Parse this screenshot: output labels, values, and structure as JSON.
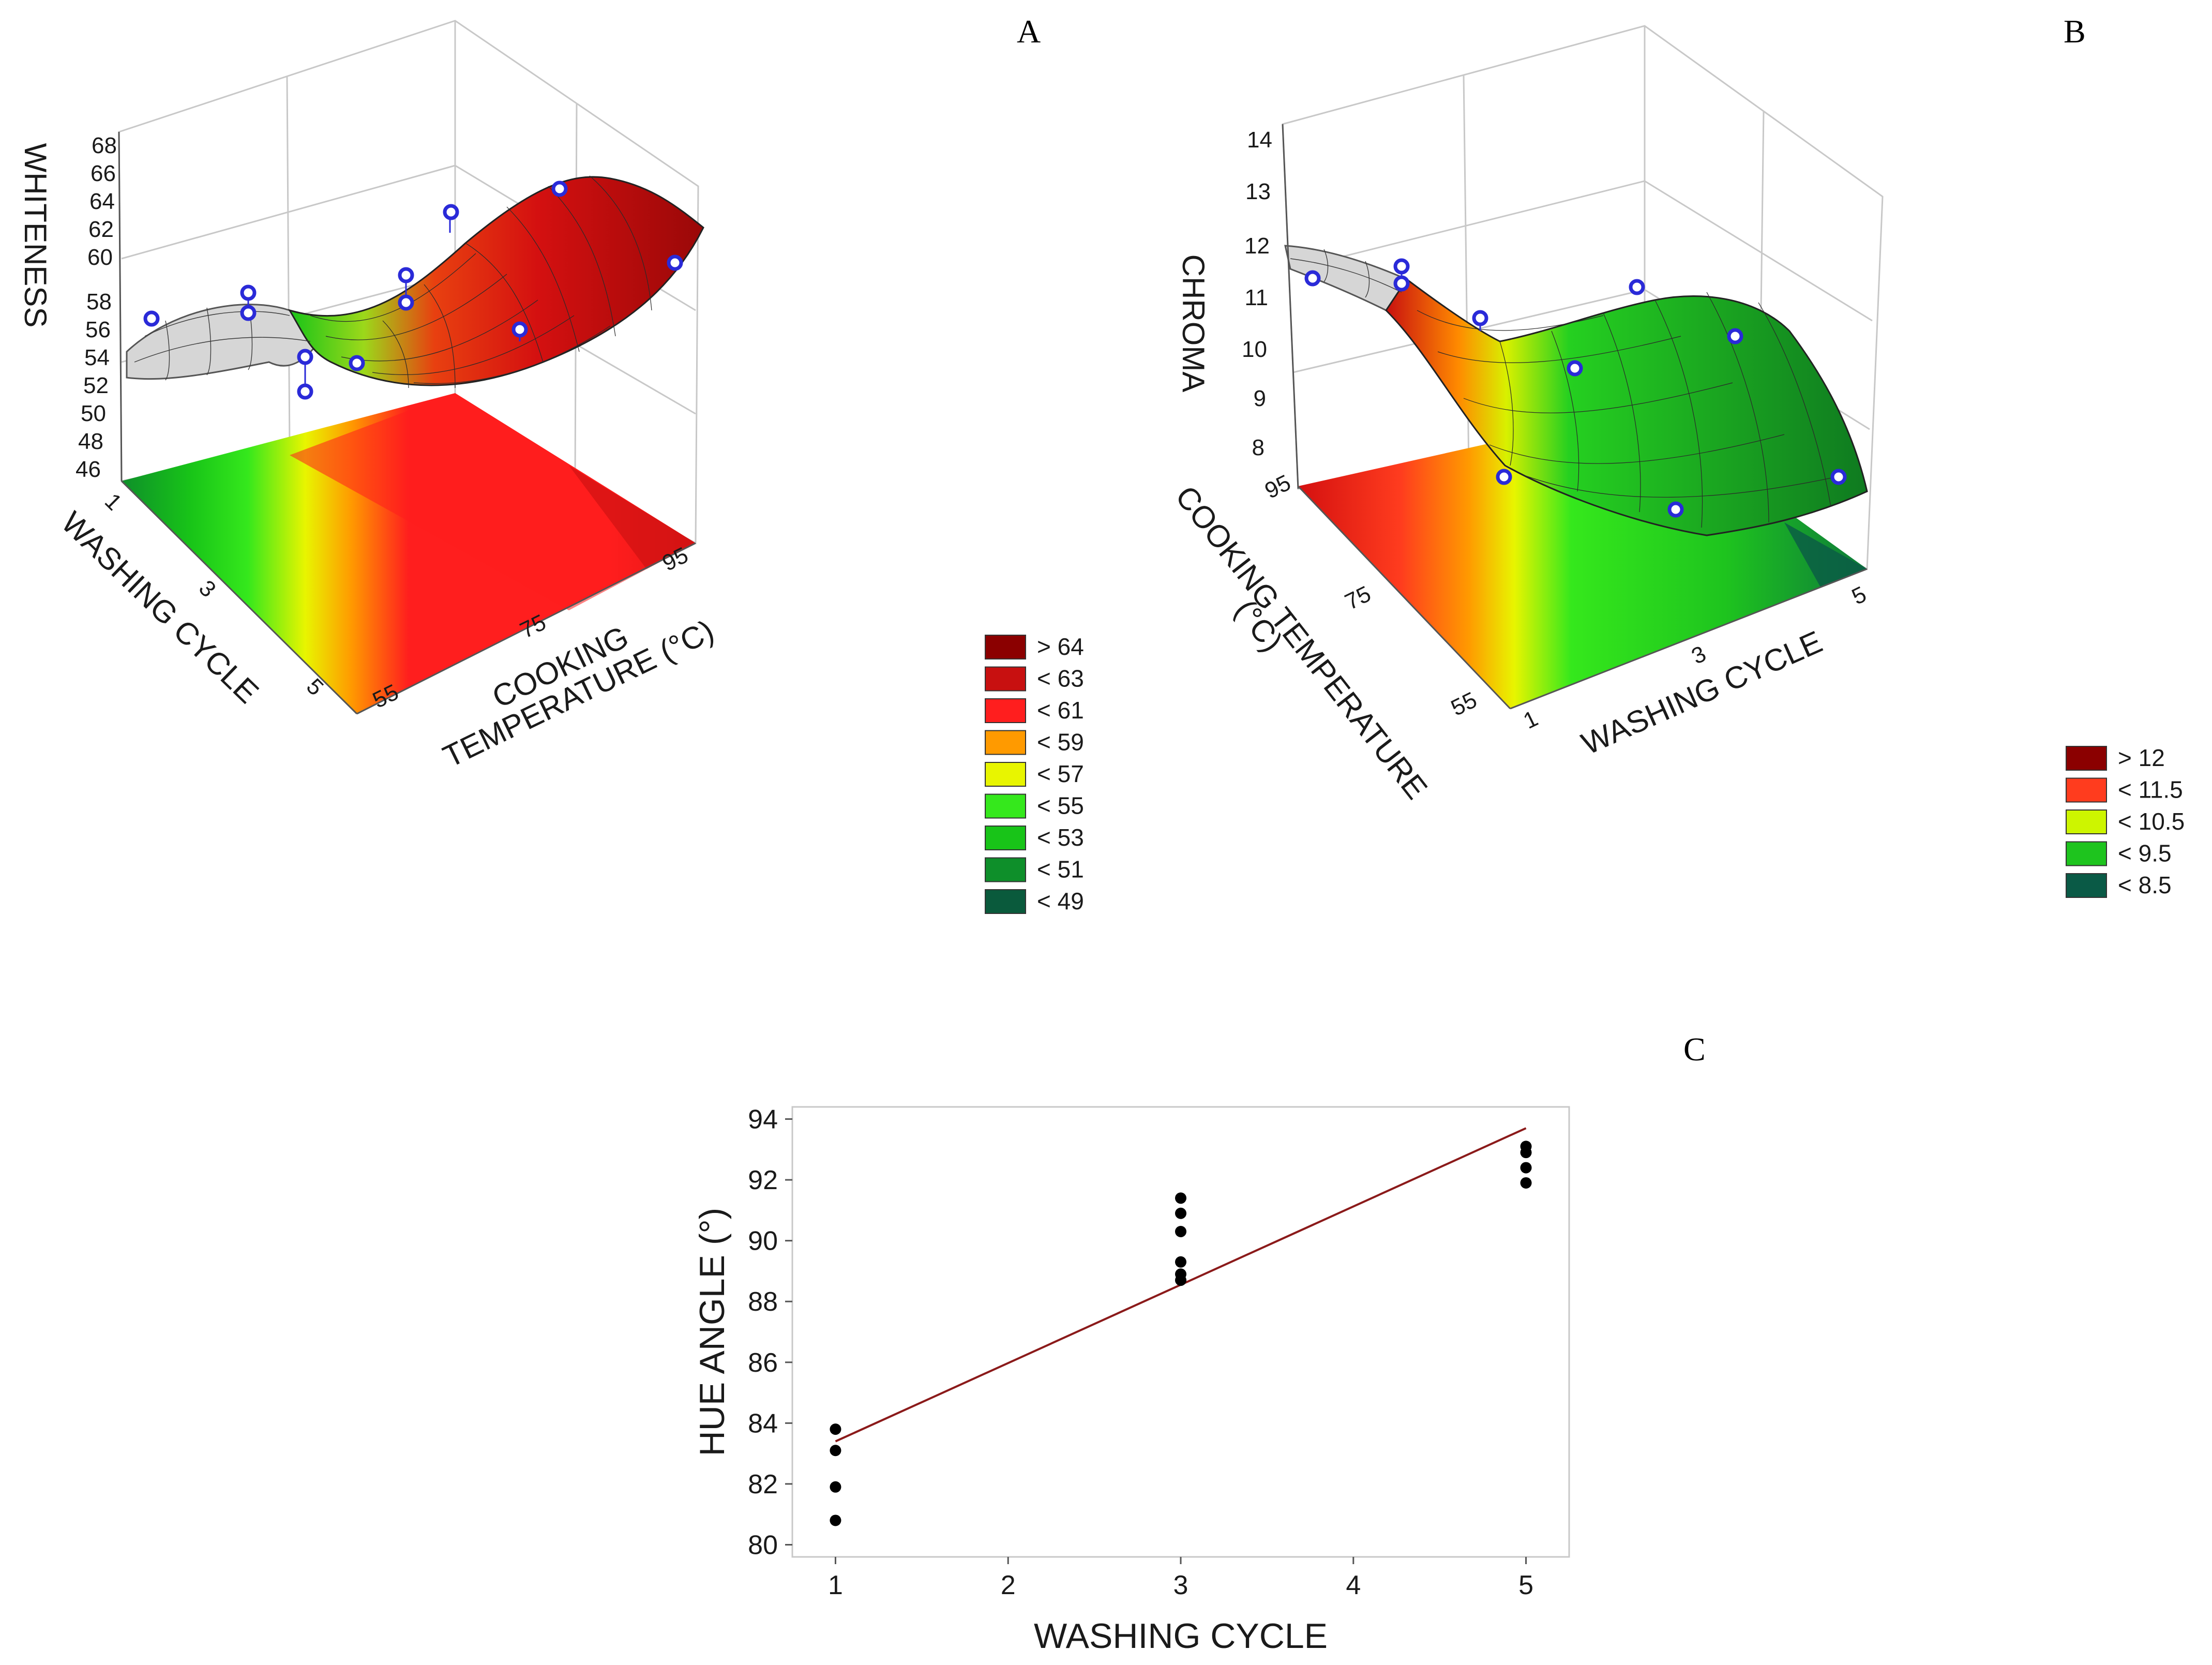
{
  "figure": {
    "panels": [
      "A",
      "B",
      "C"
    ]
  },
  "chart_data": [
    {
      "panel": "A",
      "type": "surface",
      "zlabel": "WHITENESS",
      "xlabel": "WASHING CYCLE",
      "ylabel_line1": "COOKING",
      "ylabel_line2": "TEMPERATURE (°C)",
      "x_ticks": [
        "1",
        "3",
        "5"
      ],
      "y_ticks": [
        "55",
        "75",
        "95"
      ],
      "z_ticks": [
        "46",
        "48",
        "50",
        "52",
        "54",
        "56",
        "58",
        "60",
        "62",
        "64",
        "66",
        "68"
      ],
      "zlim": [
        46,
        68
      ],
      "legend": [
        {
          "label": "> 64",
          "color": "#8b0000"
        },
        {
          "label": "< 63",
          "color": "#c81010"
        },
        {
          "label": "< 61",
          "color": "#ff1e1e"
        },
        {
          "label": "< 59",
          "color": "#ff9a00"
        },
        {
          "label": "< 57",
          "color": "#e8f500"
        },
        {
          "label": "< 55",
          "color": "#35e81c"
        },
        {
          "label": "< 53",
          "color": "#18c418"
        },
        {
          "label": "< 51",
          "color": "#0e8f2a"
        },
        {
          "label": "< 49",
          "color": "#0a5a3c"
        }
      ]
    },
    {
      "panel": "B",
      "type": "surface",
      "zlabel": "CHROMA",
      "xlabel": "WASHING CYCLE",
      "ylabel_line1": "COOKING TEMPERATURE",
      "ylabel_line2": "(°C)",
      "x_ticks": [
        "1",
        "3",
        "5"
      ],
      "y_ticks": [
        "55",
        "75",
        "95"
      ],
      "z_ticks": [
        "8",
        "9",
        "10",
        "11",
        "12",
        "13",
        "14"
      ],
      "zlim": [
        7.5,
        14
      ],
      "legend": [
        {
          "label": "> 12",
          "color": "#8b0000"
        },
        {
          "label": "< 11.5",
          "color": "#ff3c1e"
        },
        {
          "label": "< 10.5",
          "color": "#cdf500"
        },
        {
          "label": "< 9.5",
          "color": "#1ec41e"
        },
        {
          "label": "< 8.5",
          "color": "#0a5a46"
        }
      ]
    },
    {
      "panel": "C",
      "type": "scatter",
      "xlabel": "WASHING CYCLE",
      "ylabel": "HUE ANGLE (°)",
      "x_ticks": [
        "1",
        "2",
        "3",
        "4",
        "5"
      ],
      "y_ticks": [
        "80",
        "82",
        "84",
        "86",
        "88",
        "90",
        "92",
        "94"
      ],
      "xlim": [
        0.75,
        5.25
      ],
      "ylim": [
        79.6,
        94.4
      ],
      "points": [
        {
          "x": 1,
          "y": 80.8
        },
        {
          "x": 1,
          "y": 81.9
        },
        {
          "x": 1,
          "y": 83.1
        },
        {
          "x": 1,
          "y": 83.8
        },
        {
          "x": 3,
          "y": 88.7
        },
        {
          "x": 3,
          "y": 88.9
        },
        {
          "x": 3,
          "y": 89.3
        },
        {
          "x": 3,
          "y": 90.3
        },
        {
          "x": 3,
          "y": 90.9
        },
        {
          "x": 3,
          "y": 91.4
        },
        {
          "x": 5,
          "y": 91.9
        },
        {
          "x": 5,
          "y": 92.4
        },
        {
          "x": 5,
          "y": 92.9
        },
        {
          "x": 5,
          "y": 93.1
        }
      ],
      "fit_line": {
        "x": [
          1,
          5
        ],
        "y": [
          83.4,
          93.7
        ],
        "color": "#8b1a1a"
      }
    }
  ]
}
